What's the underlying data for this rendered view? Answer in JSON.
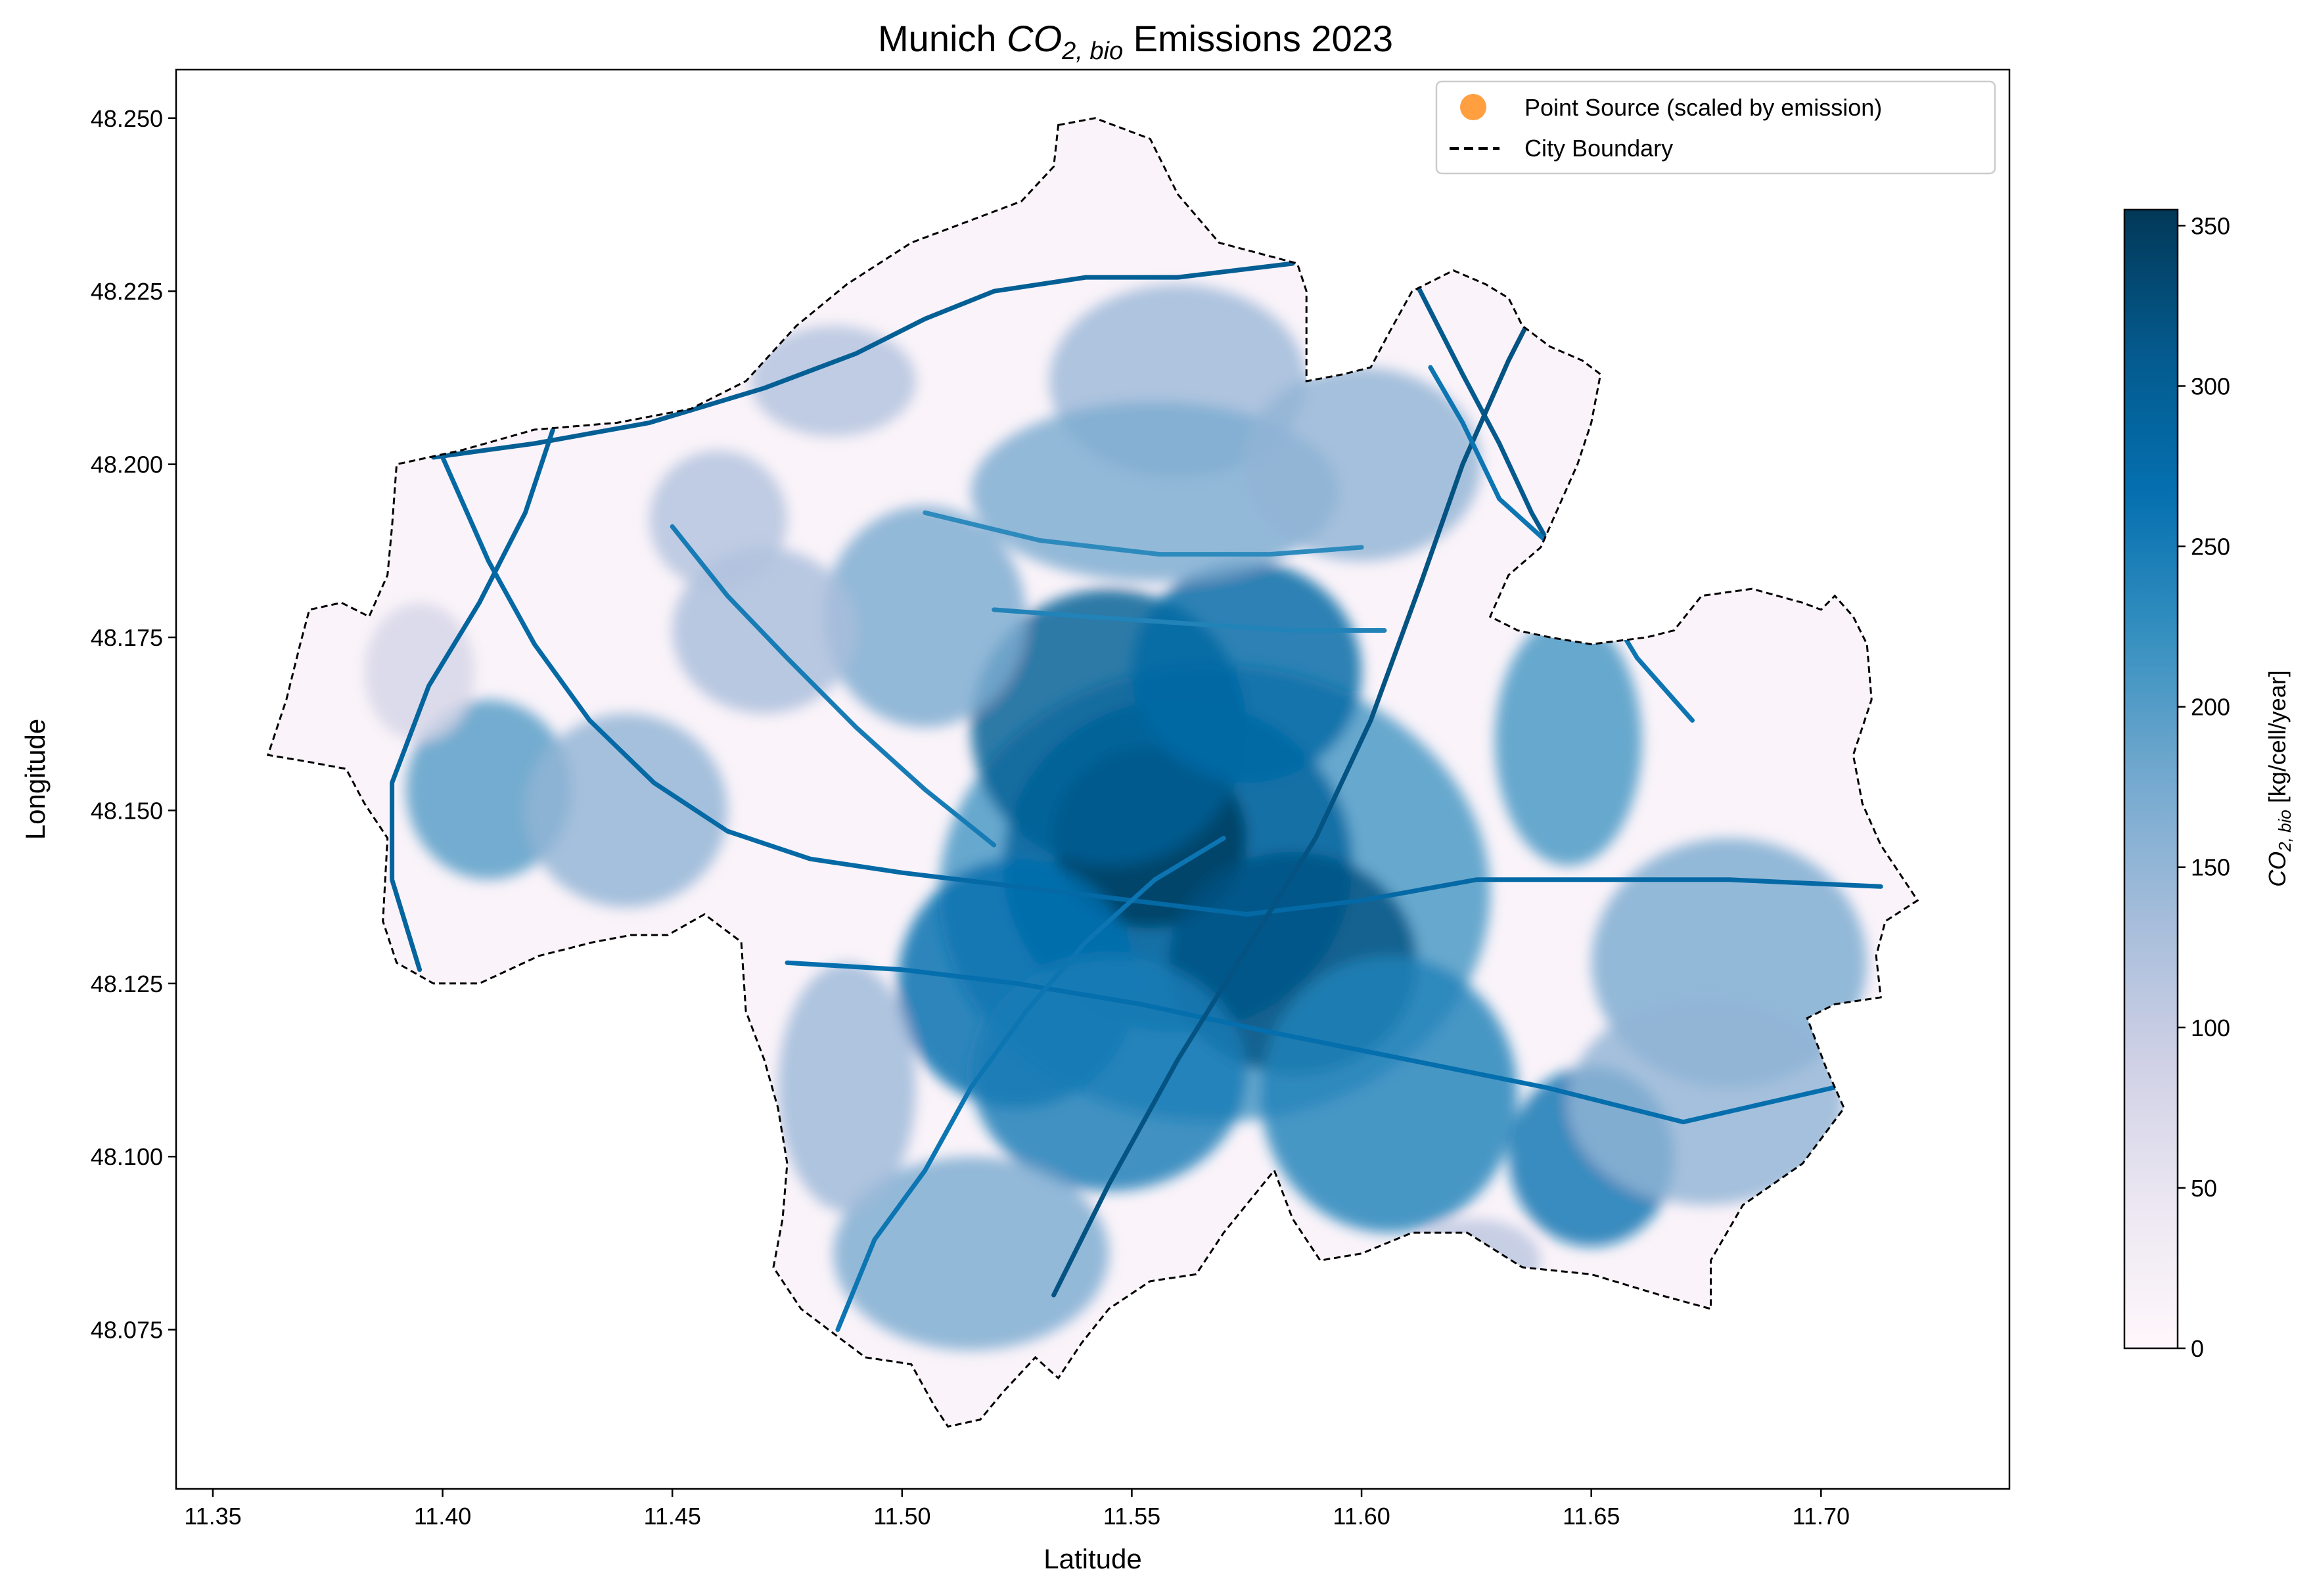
{
  "chart_data": {
    "type": "heatmap",
    "title": {
      "prefix": "Munich ",
      "formula_main": "CO",
      "formula_sub": "2, bio",
      "suffix": " Emissions 2023"
    },
    "xlabel": "Latitude",
    "ylabel": "Longitude",
    "xlim": [
      11.342,
      11.741
    ],
    "ylim": [
      48.052,
      48.257
    ],
    "x_ticks": [
      "11.35",
      "11.40",
      "11.45",
      "11.50",
      "11.55",
      "11.60",
      "11.65",
      "11.70"
    ],
    "y_ticks": [
      "48.075",
      "48.100",
      "48.125",
      "48.150",
      "48.175",
      "48.200",
      "48.225",
      "48.250"
    ],
    "colorbar": {
      "label_main": "CO",
      "label_sub": "2, bio",
      "label_unit": " [kg/cell/year]",
      "range": [
        0,
        355
      ],
      "ticks": [
        "0",
        "50",
        "100",
        "150",
        "200",
        "250",
        "300",
        "350"
      ],
      "colormap": [
        "#fff7fb",
        "#ece7f2",
        "#d0d1e6",
        "#a6bddb",
        "#74a9cf",
        "#3690c0",
        "#0570b0",
        "#045a8d",
        "#023858"
      ]
    },
    "legend": {
      "placement": "top-right",
      "entries": [
        {
          "label": "Point Source (scaled by emission)",
          "marker": "circle",
          "color": "#ff9f40"
        },
        {
          "label": "City Boundary",
          "marker": "dashed-line",
          "color": "#000000"
        }
      ]
    },
    "point_sources": [],
    "boundary": [
      [
        11.534,
        48.249
      ],
      [
        11.542,
        48.25
      ],
      [
        11.554,
        48.247
      ],
      [
        11.56,
        48.239
      ],
      [
        11.569,
        48.232
      ],
      [
        11.586,
        48.229
      ],
      [
        11.588,
        48.225
      ],
      [
        11.588,
        48.212
      ],
      [
        11.596,
        48.213
      ],
      [
        11.602,
        48.214
      ],
      [
        11.606,
        48.219
      ],
      [
        11.611,
        48.225
      ],
      [
        11.62,
        48.228
      ],
      [
        11.627,
        48.226
      ],
      [
        11.632,
        48.224
      ],
      [
        11.635,
        48.22
      ],
      [
        11.641,
        48.217
      ],
      [
        11.648,
        48.215
      ],
      [
        11.652,
        48.213
      ],
      [
        11.65,
        48.206
      ],
      [
        11.647,
        48.2
      ],
      [
        11.643,
        48.194
      ],
      [
        11.639,
        48.188
      ],
      [
        11.632,
        48.184
      ],
      [
        11.628,
        48.178
      ],
      [
        11.634,
        48.176
      ],
      [
        11.641,
        48.175
      ],
      [
        11.65,
        48.174
      ],
      [
        11.662,
        48.175
      ],
      [
        11.668,
        48.176
      ],
      [
        11.674,
        48.181
      ],
      [
        11.685,
        48.182
      ],
      [
        11.696,
        48.18
      ],
      [
        11.7,
        48.179
      ],
      [
        11.703,
        48.181
      ],
      [
        11.707,
        48.178
      ],
      [
        11.71,
        48.174
      ],
      [
        11.711,
        48.166
      ],
      [
        11.707,
        48.158
      ],
      [
        11.709,
        48.151
      ],
      [
        11.713,
        48.145
      ],
      [
        11.717,
        48.141
      ],
      [
        11.721,
        48.137
      ],
      [
        11.714,
        48.134
      ],
      [
        11.712,
        48.129
      ],
      [
        11.713,
        48.123
      ],
      [
        11.703,
        48.122
      ],
      [
        11.697,
        48.12
      ],
      [
        11.701,
        48.113
      ],
      [
        11.705,
        48.107
      ],
      [
        11.696,
        48.099
      ],
      [
        11.683,
        48.093
      ],
      [
        11.676,
        48.085
      ],
      [
        11.676,
        48.078
      ],
      [
        11.665,
        48.08
      ],
      [
        11.65,
        48.083
      ],
      [
        11.635,
        48.084
      ],
      [
        11.623,
        48.089
      ],
      [
        11.611,
        48.089
      ],
      [
        11.6,
        48.086
      ],
      [
        11.591,
        48.085
      ],
      [
        11.585,
        48.091
      ],
      [
        11.581,
        48.098
      ],
      [
        11.57,
        48.089
      ],
      [
        11.564,
        48.083
      ],
      [
        11.554,
        48.082
      ],
      [
        11.545,
        48.078
      ],
      [
        11.539,
        48.073
      ],
      [
        11.534,
        48.068
      ],
      [
        11.529,
        48.071
      ],
      [
        11.522,
        48.066
      ],
      [
        11.517,
        48.062
      ],
      [
        11.51,
        48.061
      ],
      [
        11.507,
        48.064
      ],
      [
        11.502,
        48.07
      ],
      [
        11.492,
        48.071
      ],
      [
        11.486,
        48.074
      ],
      [
        11.478,
        48.078
      ],
      [
        11.472,
        48.084
      ],
      [
        11.474,
        48.091
      ],
      [
        11.475,
        48.099
      ],
      [
        11.473,
        48.107
      ],
      [
        11.47,
        48.114
      ],
      [
        11.466,
        48.121
      ],
      [
        11.465,
        48.131
      ],
      [
        11.457,
        48.135
      ],
      [
        11.449,
        48.132
      ],
      [
        11.441,
        48.132
      ],
      [
        11.433,
        48.131
      ],
      [
        11.421,
        48.129
      ],
      [
        11.408,
        48.125
      ],
      [
        11.398,
        48.125
      ],
      [
        11.39,
        48.128
      ],
      [
        11.387,
        48.134
      ],
      [
        11.388,
        48.146
      ],
      [
        11.383,
        48.151
      ],
      [
        11.379,
        48.156
      ],
      [
        11.371,
        48.157
      ],
      [
        11.362,
        48.158
      ],
      [
        11.366,
        48.166
      ],
      [
        11.369,
        48.174
      ],
      [
        11.371,
        48.179
      ],
      [
        11.378,
        48.18
      ],
      [
        11.384,
        48.178
      ],
      [
        11.388,
        48.184
      ],
      [
        11.389,
        48.191
      ],
      [
        11.39,
        48.2
      ],
      [
        11.404,
        48.202
      ],
      [
        11.42,
        48.205
      ],
      [
        11.438,
        48.206
      ],
      [
        11.454,
        48.208
      ],
      [
        11.466,
        48.212
      ],
      [
        11.477,
        48.22
      ],
      [
        11.488,
        48.226
      ],
      [
        11.502,
        48.232
      ],
      [
        11.514,
        48.235
      ],
      [
        11.526,
        48.238
      ],
      [
        11.533,
        48.243
      ],
      [
        11.534,
        48.249
      ]
    ],
    "roads": [
      {
        "level": 300,
        "points": [
          [
            11.398,
            48.201
          ],
          [
            11.42,
            48.203
          ],
          [
            11.445,
            48.206
          ],
          [
            11.47,
            48.211
          ],
          [
            11.49,
            48.216
          ],
          [
            11.505,
            48.221
          ],
          [
            11.52,
            48.225
          ],
          [
            11.54,
            48.227
          ],
          [
            11.56,
            48.227
          ],
          [
            11.585,
            48.229
          ]
        ]
      },
      {
        "level": 290,
        "points": [
          [
            11.424,
            48.205
          ],
          [
            11.418,
            48.193
          ],
          [
            11.408,
            48.18
          ],
          [
            11.397,
            48.168
          ],
          [
            11.389,
            48.154
          ],
          [
            11.389,
            48.14
          ],
          [
            11.395,
            48.127
          ]
        ]
      },
      {
        "level": 280,
        "points": [
          [
            11.4,
            48.201
          ],
          [
            11.41,
            48.186
          ],
          [
            11.42,
            48.174
          ],
          [
            11.432,
            48.163
          ],
          [
            11.446,
            48.154
          ],
          [
            11.462,
            48.147
          ],
          [
            11.48,
            48.143
          ],
          [
            11.5,
            48.141
          ],
          [
            11.525,
            48.139
          ],
          [
            11.55,
            48.137
          ],
          [
            11.575,
            48.135
          ],
          [
            11.6,
            48.137
          ],
          [
            11.625,
            48.14
          ],
          [
            11.65,
            48.14
          ],
          [
            11.68,
            48.14
          ],
          [
            11.713,
            48.139
          ]
        ]
      },
      {
        "level": 270,
        "points": [
          [
            11.475,
            48.128
          ],
          [
            11.5,
            48.127
          ],
          [
            11.525,
            48.125
          ],
          [
            11.552,
            48.122
          ],
          [
            11.58,
            48.118
          ],
          [
            11.61,
            48.114
          ],
          [
            11.64,
            48.11
          ],
          [
            11.67,
            48.105
          ],
          [
            11.703,
            48.11
          ]
        ]
      },
      {
        "level": 310,
        "points": [
          [
            11.612,
            48.226
          ],
          [
            11.622,
            48.213
          ],
          [
            11.63,
            48.203
          ],
          [
            11.637,
            48.193
          ],
          [
            11.643,
            48.186
          ],
          [
            11.65,
            48.177
          ]
        ]
      },
      {
        "level": 320,
        "points": [
          [
            11.642,
            48.228
          ],
          [
            11.632,
            48.215
          ],
          [
            11.622,
            48.2
          ],
          [
            11.613,
            48.183
          ],
          [
            11.602,
            48.163
          ],
          [
            11.59,
            48.146
          ],
          [
            11.575,
            48.13
          ],
          [
            11.56,
            48.114
          ],
          [
            11.545,
            48.096
          ],
          [
            11.533,
            48.08
          ]
        ]
      },
      {
        "level": 260,
        "points": [
          [
            11.615,
            48.214
          ],
          [
            11.622,
            48.206
          ],
          [
            11.63,
            48.195
          ],
          [
            11.64,
            48.189
          ],
          [
            11.65,
            48.183
          ],
          [
            11.66,
            48.172
          ],
          [
            11.672,
            48.163
          ]
        ]
      },
      {
        "level": 260,
        "points": [
          [
            11.486,
            48.075
          ],
          [
            11.494,
            48.088
          ],
          [
            11.505,
            48.098
          ],
          [
            11.515,
            48.11
          ],
          [
            11.527,
            48.121
          ],
          [
            11.54,
            48.131
          ],
          [
            11.555,
            48.14
          ],
          [
            11.57,
            48.146
          ]
        ]
      },
      {
        "level": 250,
        "points": [
          [
            11.45,
            48.191
          ],
          [
            11.462,
            48.181
          ],
          [
            11.475,
            48.172
          ],
          [
            11.49,
            48.162
          ],
          [
            11.505,
            48.153
          ],
          [
            11.52,
            48.145
          ]
        ]
      },
      {
        "level": 240,
        "points": [
          [
            11.52,
            48.179
          ],
          [
            11.54,
            48.178
          ],
          [
            11.562,
            48.177
          ],
          [
            11.585,
            48.176
          ],
          [
            11.605,
            48.176
          ]
        ]
      },
      {
        "level": 230,
        "points": [
          [
            11.505,
            48.193
          ],
          [
            11.53,
            48.189
          ],
          [
            11.556,
            48.187
          ],
          [
            11.58,
            48.187
          ],
          [
            11.6,
            48.188
          ]
        ]
      }
    ],
    "zones": [
      {
        "lon": 11.568,
        "lat": 48.138,
        "rx": 0.06,
        "ry": 0.033,
        "level": 210
      },
      {
        "lon": 11.56,
        "lat": 48.142,
        "rx": 0.038,
        "ry": 0.024,
        "level": 290
      },
      {
        "lon": 11.554,
        "lat": 48.146,
        "rx": 0.021,
        "ry": 0.013,
        "level": 350
      },
      {
        "lon": 11.585,
        "lat": 48.128,
        "rx": 0.027,
        "ry": 0.016,
        "level": 320
      },
      {
        "lon": 11.545,
        "lat": 48.162,
        "rx": 0.03,
        "ry": 0.02,
        "level": 300
      },
      {
        "lon": 11.575,
        "lat": 48.17,
        "rx": 0.025,
        "ry": 0.016,
        "level": 280
      },
      {
        "lon": 11.525,
        "lat": 48.125,
        "rx": 0.026,
        "ry": 0.018,
        "level": 270
      },
      {
        "lon": 11.545,
        "lat": 48.112,
        "rx": 0.03,
        "ry": 0.017,
        "level": 250
      },
      {
        "lon": 11.606,
        "lat": 48.109,
        "rx": 0.028,
        "ry": 0.02,
        "level": 240
      },
      {
        "lon": 11.65,
        "lat": 48.1,
        "rx": 0.018,
        "ry": 0.013,
        "level": 260
      },
      {
        "lon": 11.645,
        "lat": 48.16,
        "rx": 0.016,
        "ry": 0.018,
        "level": 210
      },
      {
        "lon": 11.68,
        "lat": 48.128,
        "rx": 0.03,
        "ry": 0.018,
        "level": 170
      },
      {
        "lon": 11.675,
        "lat": 48.108,
        "rx": 0.03,
        "ry": 0.015,
        "level": 150
      },
      {
        "lon": 11.505,
        "lat": 48.178,
        "rx": 0.022,
        "ry": 0.016,
        "level": 170
      },
      {
        "lon": 11.47,
        "lat": 48.176,
        "rx": 0.02,
        "ry": 0.012,
        "level": 130
      },
      {
        "lon": 11.46,
        "lat": 48.192,
        "rx": 0.015,
        "ry": 0.01,
        "level": 120
      },
      {
        "lon": 11.41,
        "lat": 48.153,
        "rx": 0.018,
        "ry": 0.013,
        "level": 200
      },
      {
        "lon": 11.44,
        "lat": 48.15,
        "rx": 0.022,
        "ry": 0.014,
        "level": 150
      },
      {
        "lon": 11.515,
        "lat": 48.086,
        "rx": 0.03,
        "ry": 0.014,
        "level": 170
      },
      {
        "lon": 11.56,
        "lat": 48.212,
        "rx": 0.028,
        "ry": 0.014,
        "level": 140
      },
      {
        "lon": 11.555,
        "lat": 48.196,
        "rx": 0.04,
        "ry": 0.013,
        "level": 170
      },
      {
        "lon": 11.6,
        "lat": 48.2,
        "rx": 0.026,
        "ry": 0.014,
        "level": 150
      },
      {
        "lon": 11.485,
        "lat": 48.212,
        "rx": 0.018,
        "ry": 0.008,
        "level": 120
      },
      {
        "lon": 11.395,
        "lat": 48.17,
        "rx": 0.012,
        "ry": 0.01,
        "level": 80
      },
      {
        "lon": 11.488,
        "lat": 48.11,
        "rx": 0.015,
        "ry": 0.018,
        "level": 140
      },
      {
        "lon": 11.625,
        "lat": 48.085,
        "rx": 0.014,
        "ry": 0.006,
        "level": 110
      }
    ]
  }
}
